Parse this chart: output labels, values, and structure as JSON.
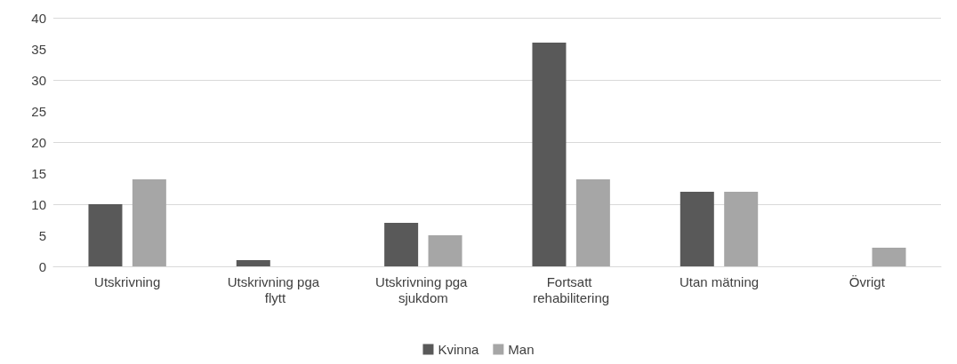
{
  "chart_data": {
    "type": "bar",
    "categories": [
      "Utskrivning",
      "Utskrivning pga flytt",
      "Utskrivning pga sjukdom",
      "Fortsatt rehabilitering",
      "Utan mätning",
      "Övrigt"
    ],
    "series": [
      {
        "name": "Kvinna",
        "color": "#595959",
        "values": [
          10,
          1,
          7,
          36,
          12,
          0
        ]
      },
      {
        "name": "Man",
        "color": "#a6a6a6",
        "values": [
          14,
          0,
          5,
          14,
          12,
          3
        ]
      }
    ],
    "ylim": [
      0,
      40
    ],
    "yticks": [
      0,
      5,
      10,
      15,
      20,
      25,
      30,
      35,
      40
    ],
    "grid": "y",
    "legend": "bottom"
  }
}
